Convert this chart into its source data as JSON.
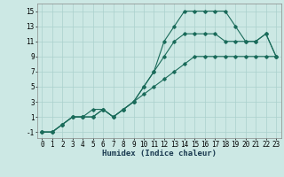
{
  "bg_color": "#cce8e4",
  "grid_color": "#aad0cc",
  "line_color": "#1a6b5a",
  "line1_x": [
    0,
    1,
    2,
    3,
    4,
    5,
    6,
    7,
    8,
    9,
    10,
    11,
    12,
    13,
    14,
    15,
    16,
    17,
    18,
    19,
    20,
    21,
    22,
    23
  ],
  "line1_y": [
    -1,
    -1,
    0,
    1,
    1,
    2,
    2,
    1,
    2,
    3,
    5,
    7,
    11,
    13,
    15,
    15,
    15,
    15,
    15,
    13,
    11,
    11,
    12,
    9
  ],
  "line2_x": [
    0,
    1,
    2,
    3,
    4,
    5,
    6,
    7,
    8,
    9,
    10,
    11,
    12,
    13,
    14,
    15,
    16,
    17,
    18,
    19,
    20,
    21,
    22,
    23
  ],
  "line2_y": [
    -1,
    -1,
    0,
    1,
    1,
    1,
    2,
    1,
    2,
    3,
    5,
    7,
    9,
    11,
    12,
    12,
    12,
    12,
    11,
    11,
    11,
    11,
    12,
    9
  ],
  "line3_x": [
    0,
    1,
    2,
    3,
    4,
    5,
    6,
    7,
    8,
    9,
    10,
    11,
    12,
    13,
    14,
    15,
    16,
    17,
    18,
    19,
    20,
    21,
    22,
    23
  ],
  "line3_y": [
    -1,
    -1,
    0,
    1,
    1,
    1,
    2,
    1,
    2,
    3,
    4,
    5,
    6,
    7,
    8,
    9,
    9,
    9,
    9,
    9,
    9,
    9,
    9,
    9
  ],
  "xlabel": "Humidex (Indice chaleur)",
  "xlim": [
    -0.5,
    23.5
  ],
  "ylim": [
    -1.8,
    16
  ],
  "yticks": [
    -1,
    1,
    3,
    5,
    7,
    9,
    11,
    13,
    15
  ],
  "xticks": [
    0,
    1,
    2,
    3,
    4,
    5,
    6,
    7,
    8,
    9,
    10,
    11,
    12,
    13,
    14,
    15,
    16,
    17,
    18,
    19,
    20,
    21,
    22,
    23
  ],
  "marker": "D",
  "markersize": 1.8,
  "linewidth": 0.8,
  "tick_fontsize": 5.5,
  "xlabel_fontsize": 6.5
}
